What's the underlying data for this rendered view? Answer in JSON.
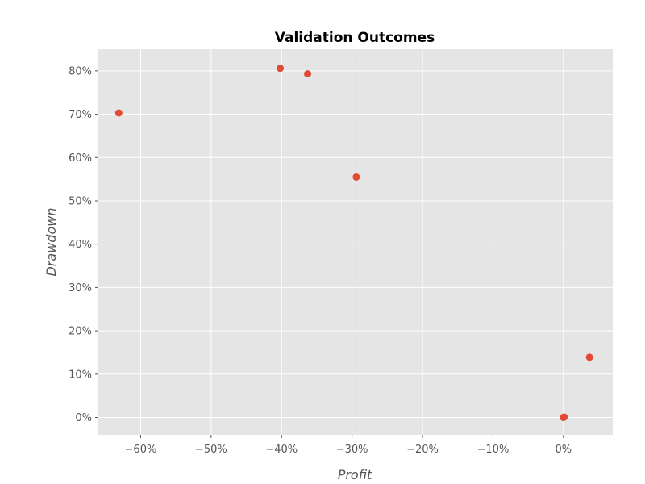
{
  "chart_data": {
    "type": "scatter",
    "title": "Validation Outcomes",
    "xlabel": "Profit",
    "ylabel": "Drawdown",
    "xlim": [
      -0.66,
      0.07
    ],
    "ylim": [
      -0.04,
      0.85
    ],
    "xticks": [
      -0.6,
      -0.5,
      -0.4,
      -0.3,
      -0.2,
      -0.1,
      0.0
    ],
    "xtick_labels": [
      "−60%",
      "−50%",
      "−40%",
      "−30%",
      "−20%",
      "−10%",
      "0%"
    ],
    "yticks": [
      0.0,
      0.1,
      0.2,
      0.3,
      0.4,
      0.5,
      0.6,
      0.7,
      0.8
    ],
    "ytick_labels": [
      "0%",
      "10%",
      "20%",
      "30%",
      "40%",
      "50%",
      "60%",
      "70%",
      "80%"
    ],
    "grid": true,
    "colors": {
      "point": "#E24A33",
      "background": "#E5E5E5",
      "grid": "#ffffff"
    },
    "points": [
      {
        "x": -0.631,
        "y": 0.703
      },
      {
        "x": -0.402,
        "y": 0.806
      },
      {
        "x": -0.363,
        "y": 0.793
      },
      {
        "x": -0.294,
        "y": 0.555
      },
      {
        "x": 0.0,
        "y": 0.0
      },
      {
        "x": 0.001,
        "y": 0.001
      },
      {
        "x": 0.037,
        "y": 0.139
      }
    ]
  }
}
